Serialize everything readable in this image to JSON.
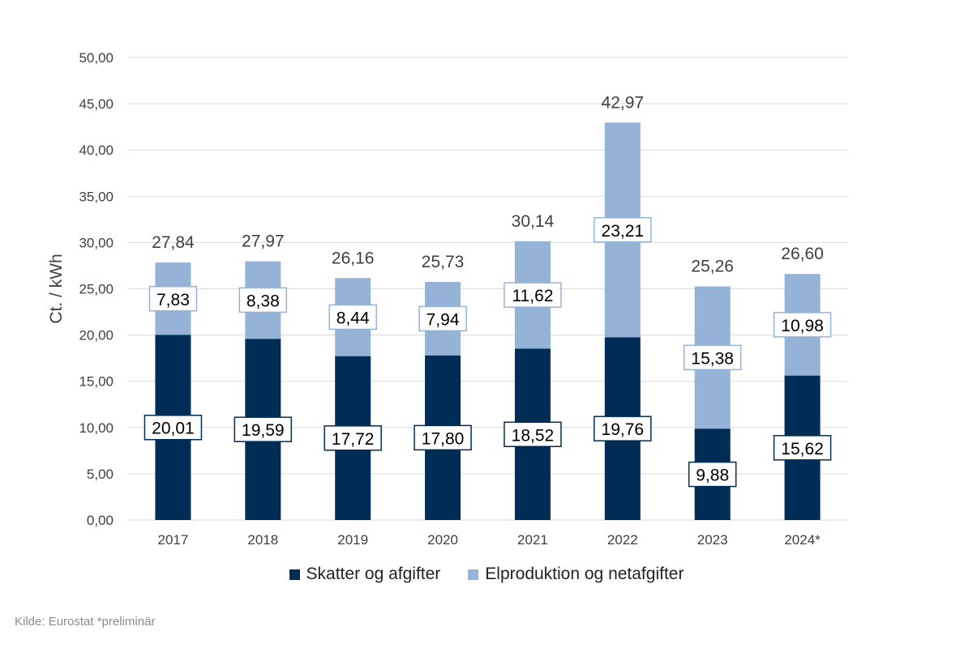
{
  "chart_data": {
    "type": "bar",
    "stacked": true,
    "categories": [
      "2017",
      "2018",
      "2019",
      "2020",
      "2021",
      "2022",
      "2023",
      "2024*"
    ],
    "series": [
      {
        "name": "Skatter og afgifter",
        "color": "#002D55",
        "values": [
          20.01,
          19.59,
          17.72,
          17.8,
          18.52,
          19.76,
          9.88,
          15.62
        ],
        "labels": [
          "20,01",
          "19,59",
          "17,72",
          "17,80",
          "18,52",
          "19,76",
          "9,88",
          "15,62"
        ]
      },
      {
        "name": "Elproduktion og netafgifter",
        "color": "#95B3D7",
        "values": [
          7.83,
          8.38,
          8.44,
          7.94,
          11.62,
          23.21,
          15.38,
          10.98
        ],
        "labels": [
          "7,83",
          "8,38",
          "8,44",
          "7,94",
          "11,62",
          "23,21",
          "15,38",
          "10,98"
        ]
      }
    ],
    "totals": [
      "27,84",
      "27,97",
      "26,16",
      "25,73",
      "30,14",
      "42,97",
      "25,26",
      "26,60"
    ],
    "ylabel": "Ct. / kWh",
    "ylim": [
      0,
      50
    ],
    "yticks": [
      "0,00",
      "5,00",
      "10,00",
      "15,00",
      "20,00",
      "25,00",
      "30,00",
      "35,00",
      "40,00",
      "45,00",
      "50,00"
    ],
    "grid": true,
    "legend": "bottom"
  },
  "source": "Kilde: Eurostat *preliminär"
}
